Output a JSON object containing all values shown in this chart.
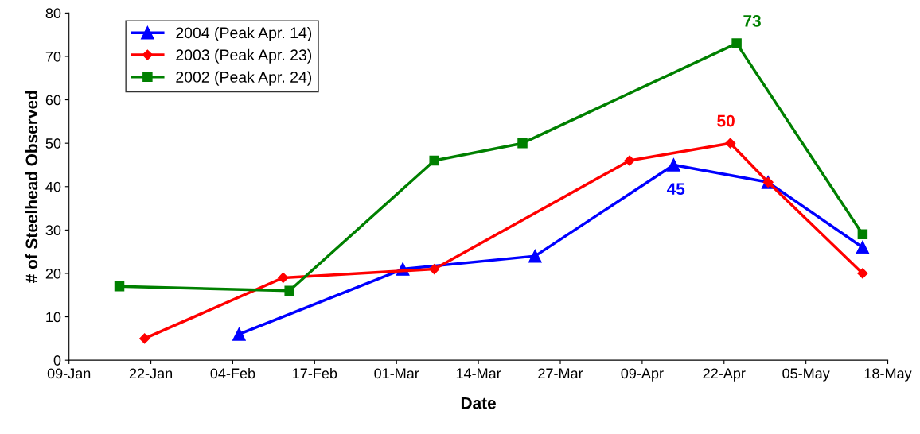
{
  "chart_data": {
    "type": "line",
    "xlabel": "Date",
    "ylabel": "# of Steelhead Observed",
    "series": [
      {
        "name": "2004 (Peak Apr. 14)",
        "color": "#0000ff",
        "marker": "triangle",
        "x": [
          "2004-02-05",
          "2004-03-02",
          "2004-03-23",
          "2004-04-14",
          "2004-04-29",
          "2004-05-14"
        ],
        "values": [
          6,
          21,
          24,
          45,
          41,
          26
        ]
      },
      {
        "name": "2003 (Peak Apr. 23)",
        "color": "#ff0000",
        "marker": "diamond",
        "x": [
          "2004-01-21",
          "2004-02-12",
          "2004-03-07",
          "2004-04-07",
          "2004-04-23",
          "2004-04-29",
          "2004-05-14"
        ],
        "values": [
          5,
          19,
          21,
          46,
          50,
          41,
          20
        ]
      },
      {
        "name": "2002 (Peak Apr. 24)",
        "color": "#008000",
        "marker": "square",
        "x": [
          "2004-01-17",
          "2004-02-13",
          "2004-03-07",
          "2004-03-21",
          "2004-04-24",
          "2004-05-14"
        ],
        "values": [
          17,
          16,
          46,
          50,
          73,
          29
        ]
      }
    ],
    "annotations": [
      {
        "text": "73",
        "x": "2004-04-24",
        "y": 73
      },
      {
        "text": "50",
        "x": "2004-04-23",
        "y": 50
      },
      {
        "text": "45",
        "x": "2004-04-14",
        "y": 45
      }
    ],
    "xlim": [
      "2004-01-09",
      "2004-05-18"
    ],
    "xticks": [
      {
        "value": "2004-01-09",
        "label": "09-Jan"
      },
      {
        "value": "2004-01-22",
        "label": "22-Jan"
      },
      {
        "value": "2004-02-04",
        "label": "04-Feb"
      },
      {
        "value": "2004-02-17",
        "label": "17-Feb"
      },
      {
        "value": "2004-03-01",
        "label": "01-Mar"
      },
      {
        "value": "2004-03-14",
        "label": "14-Mar"
      },
      {
        "value": "2004-03-27",
        "label": "27-Mar"
      },
      {
        "value": "2004-04-09",
        "label": "09-Apr"
      },
      {
        "value": "2004-04-22",
        "label": "22-Apr"
      },
      {
        "value": "2004-05-05",
        "label": "05-May"
      },
      {
        "value": "2004-05-18",
        "label": "18-May"
      }
    ],
    "ylim": [
      0,
      80
    ],
    "yticks": [
      0,
      10,
      20,
      30,
      40,
      50,
      60,
      70,
      80
    ],
    "grid": false,
    "legend": "top left",
    "line_style": "solid"
  }
}
